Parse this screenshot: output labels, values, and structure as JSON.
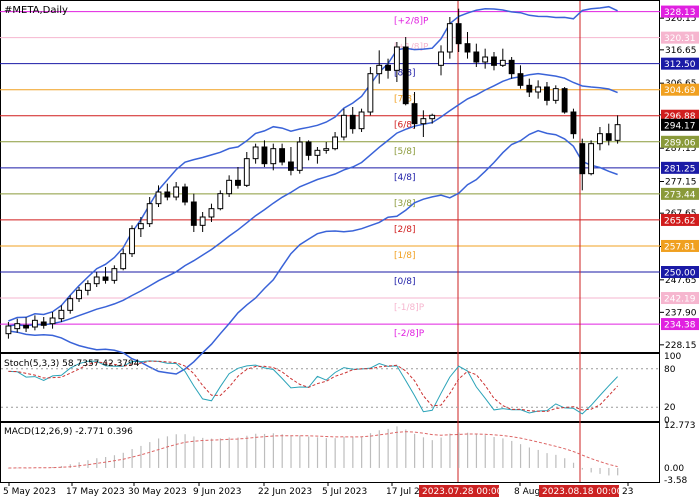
{
  "header": {
    "symbol_label": "#META,Daily"
  },
  "colors": {
    "bollinger": "#3a63d8",
    "up_candle_fill": "#ffffff",
    "down_candle_fill": "#000000",
    "candle_outline": "#000000",
    "vline": "#cc2222",
    "stoch_main": "#2aa3b8",
    "stoch_signal": "#cc3333",
    "macd_hist": "#bdbdbd",
    "macd_signal": "#dd6666",
    "grid": "#dcdcdc"
  },
  "price_scale": {
    "ticks": [
      "326.15",
      "316.65",
      "306.65",
      "297.15",
      "287.15",
      "277.15",
      "267.65",
      "257.65",
      "247.65",
      "237.90",
      "228.15"
    ]
  },
  "murrey_levels": [
    {
      "label": "[+2/8]P",
      "value": "328.13",
      "color": "#e020e0",
      "badge_text_color": "#ffffff"
    },
    {
      "label": "[+1/8]P",
      "value": "320.31",
      "color": "#f6b6cf",
      "badge_text_color": "#ffffff"
    },
    {
      "label": "[8/8]",
      "value": "312.50",
      "color": "#1a1aa6",
      "badge_text_color": "#ffffff"
    },
    {
      "label": "[7/8]",
      "value": "304.69",
      "color": "#f0a020",
      "badge_text_color": "#ffffff"
    },
    {
      "label": "[6/8]",
      "value": "296.88",
      "color": "#d01c1c",
      "badge_text_color": "#ffffff"
    },
    {
      "label": "[5/8]",
      "value": "289.06",
      "color": "#8a9a3a",
      "badge_text_color": "#ffffff"
    },
    {
      "label": "[4/8]",
      "value": "281.25",
      "color": "#1a1aa6",
      "badge_text_color": "#ffffff"
    },
    {
      "label": "[3/8]",
      "value": "273.44",
      "color": "#8a9a3a",
      "badge_text_color": "#ffffff"
    },
    {
      "label": "[2/8]",
      "value": "265.62",
      "color": "#d01c1c",
      "badge_text_color": "#ffffff"
    },
    {
      "label": "[1/8]",
      "value": "257.81",
      "color": "#f0a020",
      "badge_text_color": "#ffffff"
    },
    {
      "label": "[0/8]",
      "value": "250.00",
      "color": "#1a1aa6",
      "badge_text_color": "#ffffff"
    },
    {
      "label": "[-1/8]P",
      "value": "242.19",
      "color": "#f6b6cf",
      "badge_text_color": "#ffffff"
    },
    {
      "label": "[-2/8]P",
      "value": "234.38",
      "color": "#e020e0",
      "badge_text_color": "#ffffff"
    }
  ],
  "current_price": {
    "value": "294.17",
    "badge_color": "#000000",
    "text_color": "#ffffff"
  },
  "stochastic": {
    "label": "Stoch(5,3,3) 58.7357 42.3794",
    "ticks": [
      "100",
      "80",
      "20",
      "0"
    ]
  },
  "macd": {
    "label": "MACD(12,26,9) -2.771 0.396",
    "ticks": [
      "12.773",
      "0.00",
      "-3.58"
    ]
  },
  "time_axis": {
    "labels": [
      "5 May 2023",
      "17 May 2023",
      "30 May 2023",
      "9 Jun 2023",
      "22 Jun 2023",
      "5 Jul 2023",
      "17 Jul 2",
      "8 Aug 2",
      "23"
    ],
    "highlight_labels": [
      "2023.07.28 00:00",
      "2023.08.18 00:00"
    ]
  },
  "chart_data": {
    "type": "candlestick",
    "timeframe": "Daily",
    "ylim": [
      226,
      331
    ],
    "candles": [
      {
        "o": 231.5,
        "h": 235.0,
        "l": 230.0,
        "c": 233.8
      },
      {
        "o": 233.0,
        "h": 236.0,
        "l": 231.8,
        "c": 234.5
      },
      {
        "o": 234.0,
        "h": 236.4,
        "l": 232.0,
        "c": 233.2
      },
      {
        "o": 233.5,
        "h": 237.0,
        "l": 232.5,
        "c": 235.5
      },
      {
        "o": 235.0,
        "h": 236.5,
        "l": 233.0,
        "c": 234.0
      },
      {
        "o": 234.5,
        "h": 238.0,
        "l": 233.0,
        "c": 236.2
      },
      {
        "o": 236.0,
        "h": 240.0,
        "l": 235.0,
        "c": 238.5
      },
      {
        "o": 238.5,
        "h": 243.0,
        "l": 237.5,
        "c": 242.0
      },
      {
        "o": 242.0,
        "h": 245.5,
        "l": 241.0,
        "c": 244.5
      },
      {
        "o": 244.5,
        "h": 247.5,
        "l": 243.0,
        "c": 246.5
      },
      {
        "o": 246.5,
        "h": 250.0,
        "l": 245.5,
        "c": 248.5
      },
      {
        "o": 248.5,
        "h": 251.5,
        "l": 246.5,
        "c": 247.5
      },
      {
        "o": 247.5,
        "h": 252.0,
        "l": 246.5,
        "c": 251.0
      },
      {
        "o": 251.0,
        "h": 257.0,
        "l": 250.5,
        "c": 255.5
      },
      {
        "o": 255.5,
        "h": 264.0,
        "l": 254.5,
        "c": 263.0
      },
      {
        "o": 263.0,
        "h": 266.5,
        "l": 260.5,
        "c": 264.5
      },
      {
        "o": 264.5,
        "h": 272.5,
        "l": 263.5,
        "c": 270.5
      },
      {
        "o": 270.5,
        "h": 276.0,
        "l": 269.5,
        "c": 274.0
      },
      {
        "o": 274.0,
        "h": 276.5,
        "l": 271.5,
        "c": 272.5
      },
      {
        "o": 272.5,
        "h": 277.0,
        "l": 271.5,
        "c": 275.5
      },
      {
        "o": 275.5,
        "h": 276.5,
        "l": 270.0,
        "c": 271.0
      },
      {
        "o": 271.0,
        "h": 273.5,
        "l": 262.0,
        "c": 264.0
      },
      {
        "o": 264.0,
        "h": 268.0,
        "l": 262.0,
        "c": 266.5
      },
      {
        "o": 266.5,
        "h": 270.5,
        "l": 265.0,
        "c": 269.0
      },
      {
        "o": 269.0,
        "h": 274.5,
        "l": 268.5,
        "c": 273.5
      },
      {
        "o": 273.5,
        "h": 279.0,
        "l": 272.5,
        "c": 277.5
      },
      {
        "o": 277.5,
        "h": 281.5,
        "l": 275.0,
        "c": 276.0
      },
      {
        "o": 276.0,
        "h": 286.0,
        "l": 275.5,
        "c": 284.0
      },
      {
        "o": 284.0,
        "h": 288.5,
        "l": 282.5,
        "c": 287.5
      },
      {
        "o": 287.5,
        "h": 289.5,
        "l": 281.5,
        "c": 282.5
      },
      {
        "o": 282.5,
        "h": 288.5,
        "l": 280.5,
        "c": 287.0
      },
      {
        "o": 287.0,
        "h": 288.5,
        "l": 282.0,
        "c": 283.0
      },
      {
        "o": 283.0,
        "h": 287.5,
        "l": 279.0,
        "c": 280.5
      },
      {
        "o": 280.5,
        "h": 290.5,
        "l": 279.5,
        "c": 289.0
      },
      {
        "o": 289.0,
        "h": 289.5,
        "l": 283.5,
        "c": 285.0
      },
      {
        "o": 285.0,
        "h": 287.5,
        "l": 282.5,
        "c": 286.5
      },
      {
        "o": 286.5,
        "h": 289.0,
        "l": 285.5,
        "c": 287.0
      },
      {
        "o": 287.0,
        "h": 292.0,
        "l": 286.5,
        "c": 290.5
      },
      {
        "o": 290.5,
        "h": 299.0,
        "l": 289.5,
        "c": 297.0
      },
      {
        "o": 297.0,
        "h": 299.5,
        "l": 291.5,
        "c": 293.0
      },
      {
        "o": 293.0,
        "h": 299.0,
        "l": 292.0,
        "c": 298.0
      },
      {
        "o": 298.0,
        "h": 311.5,
        "l": 297.0,
        "c": 309.5
      },
      {
        "o": 309.5,
        "h": 316.5,
        "l": 306.5,
        "c": 312.0
      },
      {
        "o": 312.0,
        "h": 314.0,
        "l": 308.0,
        "c": 310.5
      },
      {
        "o": 310.5,
        "h": 319.0,
        "l": 307.0,
        "c": 317.5
      },
      {
        "o": 317.5,
        "h": 320.5,
        "l": 300.0,
        "c": 300.5
      },
      {
        "o": 300.5,
        "h": 304.0,
        "l": 293.0,
        "c": 294.5
      },
      {
        "o": 294.5,
        "h": 298.5,
        "l": 290.5,
        "c": 296.0
      },
      {
        "o": 296.0,
        "h": 297.5,
        "l": 294.5,
        "c": 297.0
      },
      {
        "o": 312.0,
        "h": 318.0,
        "l": 309.0,
        "c": 316.0
      },
      {
        "o": 316.0,
        "h": 326.5,
        "l": 314.0,
        "c": 324.5
      },
      {
        "o": 324.5,
        "h": 329.0,
        "l": 316.0,
        "c": 318.5
      },
      {
        "o": 318.5,
        "h": 322.0,
        "l": 314.0,
        "c": 316.0
      },
      {
        "o": 316.0,
        "h": 318.5,
        "l": 311.5,
        "c": 313.0
      },
      {
        "o": 313.0,
        "h": 317.0,
        "l": 311.0,
        "c": 314.5
      },
      {
        "o": 314.5,
        "h": 316.0,
        "l": 310.5,
        "c": 312.0
      },
      {
        "o": 312.0,
        "h": 317.0,
        "l": 311.5,
        "c": 313.5
      },
      {
        "o": 313.5,
        "h": 314.5,
        "l": 308.0,
        "c": 309.5
      },
      {
        "o": 309.5,
        "h": 312.0,
        "l": 305.0,
        "c": 306.0
      },
      {
        "o": 306.0,
        "h": 308.0,
        "l": 302.5,
        "c": 304.0
      },
      {
        "o": 304.0,
        "h": 307.5,
        "l": 302.0,
        "c": 305.5
      },
      {
        "o": 305.5,
        "h": 307.0,
        "l": 300.0,
        "c": 301.5
      },
      {
        "o": 301.5,
        "h": 306.0,
        "l": 300.5,
        "c": 305.0
      },
      {
        "o": 305.0,
        "h": 305.5,
        "l": 297.5,
        "c": 298.0
      },
      {
        "o": 298.0,
        "h": 299.0,
        "l": 290.0,
        "c": 291.5
      },
      {
        "o": 288.5,
        "h": 290.0,
        "l": 274.5,
        "c": 279.5
      },
      {
        "o": 279.5,
        "h": 289.5,
        "l": 279.0,
        "c": 288.5
      },
      {
        "o": 288.5,
        "h": 293.5,
        "l": 286.5,
        "c": 291.5
      },
      {
        "o": 291.5,
        "h": 294.5,
        "l": 288.0,
        "c": 289.5
      },
      {
        "o": 289.5,
        "h": 297.0,
        "l": 288.5,
        "c": 294.2
      }
    ]
  }
}
